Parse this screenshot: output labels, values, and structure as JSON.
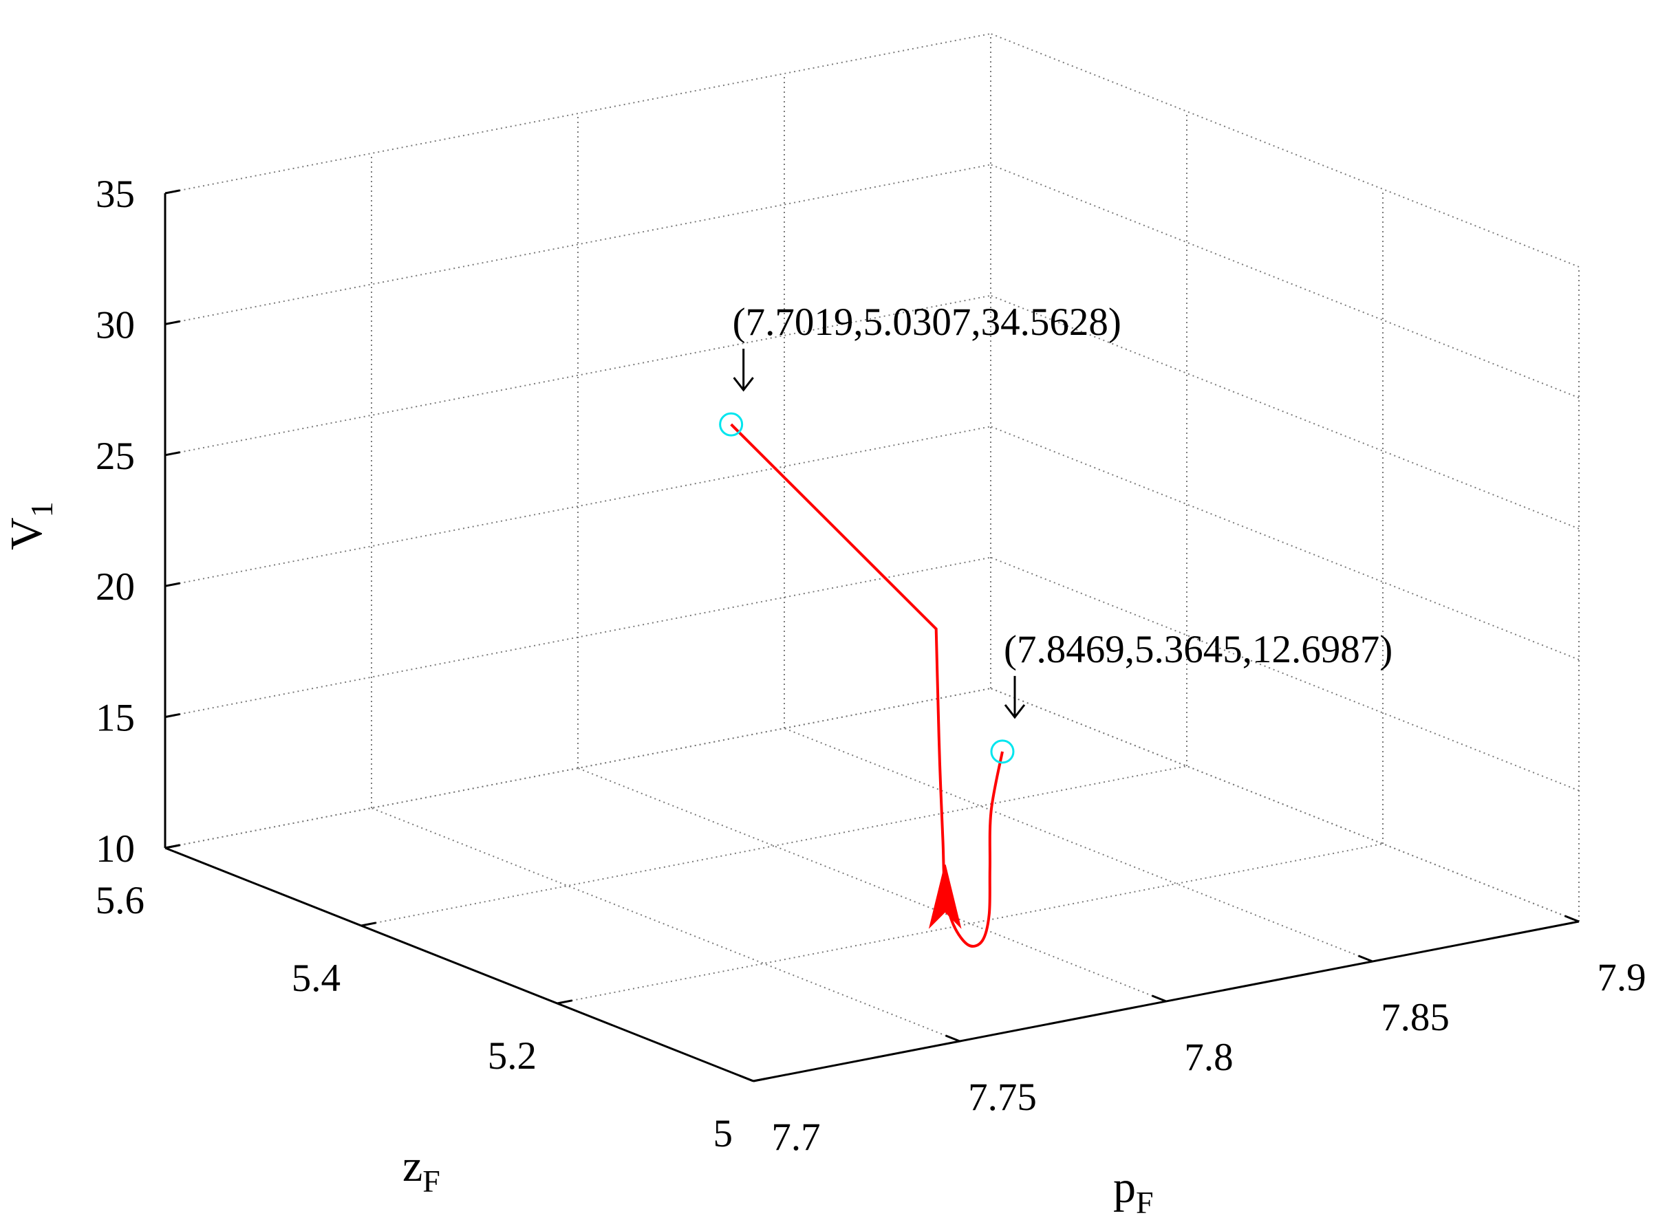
{
  "chart_data": {
    "type": "line3d",
    "xlabel": "p",
    "xlabel_sub": "F",
    "ylabel": "z",
    "ylabel_sub": "F",
    "zlabel": "V",
    "zlabel_sub": "1",
    "xlim": [
      7.7,
      7.9
    ],
    "ylim": [
      5,
      5.6
    ],
    "zlim": [
      10,
      35
    ],
    "x_ticks": [
      "7.7",
      "7.75",
      "7.8",
      "7.85",
      "7.9"
    ],
    "y_ticks": [
      "5",
      "5.2",
      "5.4",
      "5.6"
    ],
    "z_ticks": [
      "10",
      "15",
      "20",
      "25",
      "30",
      "35"
    ],
    "grid": true,
    "series": [
      {
        "color": "#ff0000",
        "points": [
          [
            7.8469,
            5.3645,
            12.6987
          ],
          [
            7.826,
            5.288,
            12.2
          ],
          [
            7.806,
            5.205,
            11.85
          ],
          [
            7.788,
            5.13,
            11.75
          ],
          [
            7.774,
            5.078,
            11.95
          ],
          [
            7.764,
            5.05,
            12.5
          ],
          [
            7.758,
            5.04,
            13.6
          ],
          [
            7.755,
            5.036,
            15.0
          ],
          [
            7.754,
            5.034,
            17.0
          ],
          [
            7.753,
            5.033,
            20.0
          ],
          [
            7.7524,
            5.0327,
            23.0
          ],
          [
            7.752,
            5.0325,
            25.2
          ],
          [
            7.7019,
            5.0307,
            34.5628
          ]
        ]
      }
    ],
    "endpoints": [
      {
        "label": "(7.7019,5.0307,34.5628)",
        "color": "#00e5ee"
      },
      {
        "label": "(7.8469,5.3645,12.6987)",
        "color": "#00e5ee"
      }
    ]
  }
}
